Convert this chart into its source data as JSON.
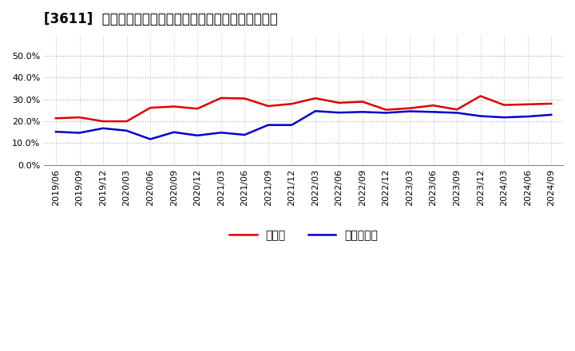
{
  "title": "[3611]  現預金、有利子負債の総資産に対する比率の推移",
  "x_labels": [
    "2019/06",
    "2019/09",
    "2019/12",
    "2020/03",
    "2020/06",
    "2020/09",
    "2020/12",
    "2021/03",
    "2021/06",
    "2021/09",
    "2021/12",
    "2022/03",
    "2022/06",
    "2022/09",
    "2022/12",
    "2023/03",
    "2023/06",
    "2023/09",
    "2023/12",
    "2024/03",
    "2024/06",
    "2024/09"
  ],
  "cash_values": [
    0.214,
    0.218,
    0.2,
    0.2,
    0.262,
    0.268,
    0.258,
    0.307,
    0.305,
    0.27,
    0.28,
    0.306,
    0.285,
    0.29,
    0.253,
    0.26,
    0.273,
    0.254,
    0.316,
    0.275,
    0.278,
    0.281
  ],
  "debt_values": [
    0.152,
    0.147,
    0.168,
    0.157,
    0.118,
    0.15,
    0.135,
    0.148,
    0.138,
    0.183,
    0.183,
    0.247,
    0.24,
    0.243,
    0.239,
    0.246,
    0.243,
    0.239,
    0.224,
    0.218,
    0.222,
    0.23
  ],
  "cash_color": "#dd0000",
  "debt_color": "#0000cc",
  "ylim": [
    0.0,
    0.6
  ],
  "yticks": [
    0.0,
    0.1,
    0.2,
    0.3,
    0.4,
    0.5
  ],
  "legend_cash": "現預金",
  "legend_debt": "有利子負債",
  "background_color": "#ffffff",
  "plot_bg_color": "#ffffff",
  "grid_color": "#aaaaaa",
  "title_fontsize": 12,
  "tick_fontsize": 8,
  "legend_fontsize": 10
}
